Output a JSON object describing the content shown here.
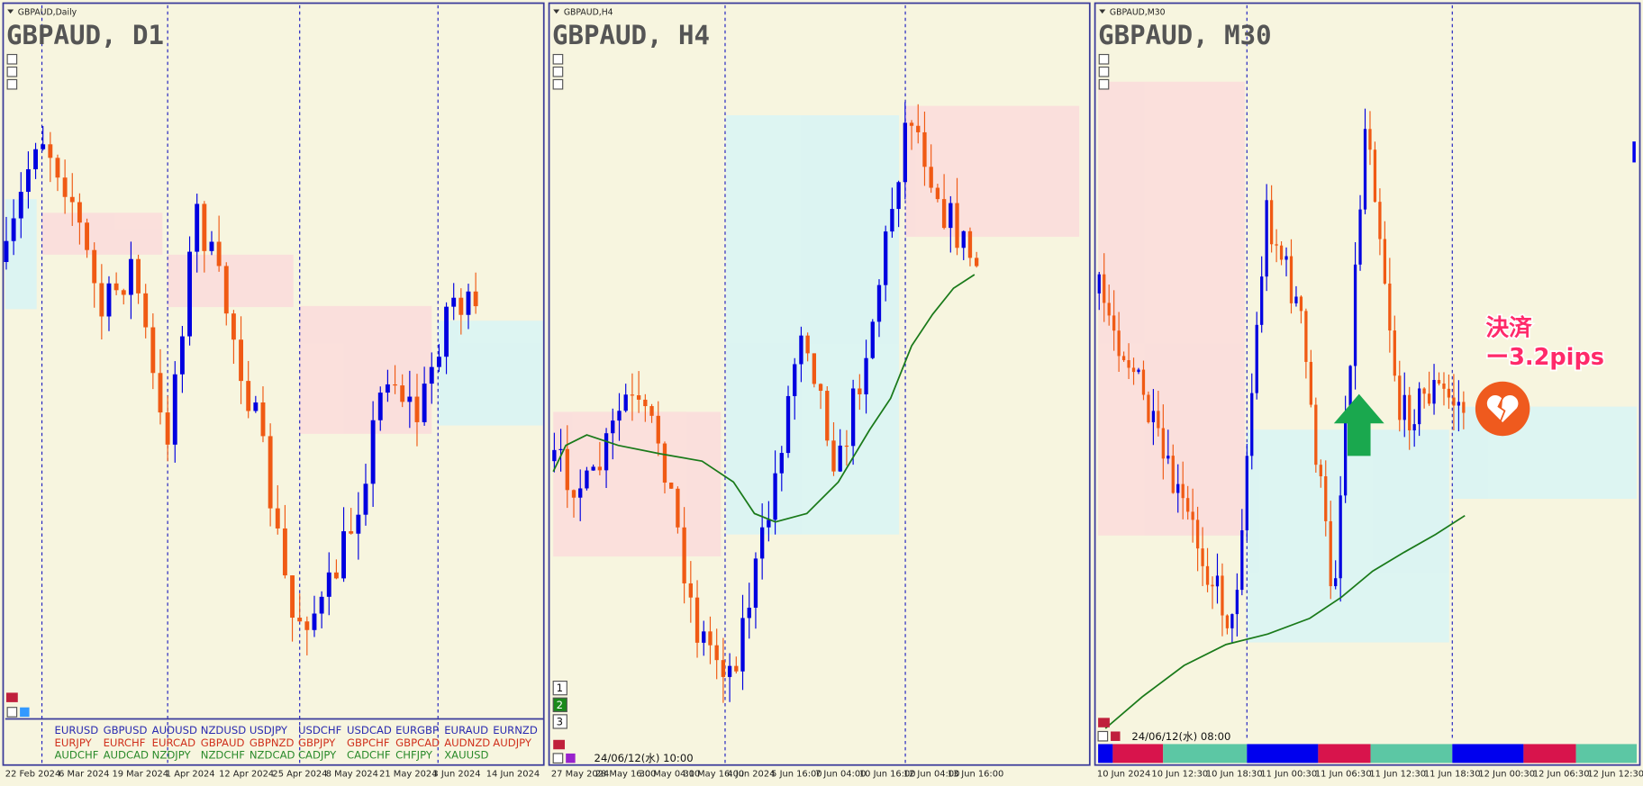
{
  "panels": [
    {
      "label": "GBPAUD,Daily",
      "title": "GBPAUD, D1",
      "dates": [
        "22 Feb 2024",
        "6 Mar 2024",
        "19 Mar 2024",
        "1 Apr 2024",
        "12 Apr 2024",
        "25 Apr 2024",
        "8 May 2024",
        "21 May 2024",
        "3 Jun 2024",
        "14 Jun 2024"
      ]
    },
    {
      "label": "GBPAUD,H4",
      "title": "GBPAUD, H4",
      "timestamp": "24/06/12(水) 10:00",
      "dates": [
        "27 May 2024",
        "28 May 16:00",
        "30 May 04:00",
        "31 May 16:00",
        "4 Jun 2024",
        "5 Jun 16:00",
        "7 Jun 04:00",
        "10 Jun 16:00",
        "12 Jun 04:00",
        "13 Jun 16:00"
      ]
    },
    {
      "label": "GBPAUD,M30",
      "title": "GBPAUD, M30",
      "timestamp": "24/06/12(水) 08:00",
      "dates": [
        "10 Jun 2024",
        "10 Jun 12:30",
        "10 Jun 18:30",
        "11 Jun 00:30",
        "11 Jun 06:30",
        "11 Jun 12:30",
        "11 Jun 18:30",
        "12 Jun 00:30",
        "12 Jun 06:30",
        "12 Jun 12:30"
      ]
    }
  ],
  "symbols": {
    "rows": [
      [
        "EURUSD",
        "GBPUSD",
        "AUDUSD",
        "NZDUSD",
        "USDJPY",
        "USDCHF",
        "USDCAD",
        "EURGBP",
        "EURAUD",
        "EURNZD"
      ],
      [
        "EURJPY",
        "EURCHF",
        "EURCAD",
        "GBPAUD",
        "GBPNZD",
        "GBPJPY",
        "GBPCHF",
        "GBPCAD",
        "AUDNZD",
        "AUDJPY"
      ],
      [
        "AUDCHF",
        "AUDCAD",
        "NZDJPY",
        "NZDCHF",
        "NZDCAD",
        "CADJPY",
        "CADCHF",
        "CHFJPY",
        "XAUUSD"
      ]
    ]
  },
  "buttons": [
    "1",
    "2",
    "3"
  ],
  "annotation": {
    "line1": "決済",
    "line2": "ー3.2pips"
  }
}
